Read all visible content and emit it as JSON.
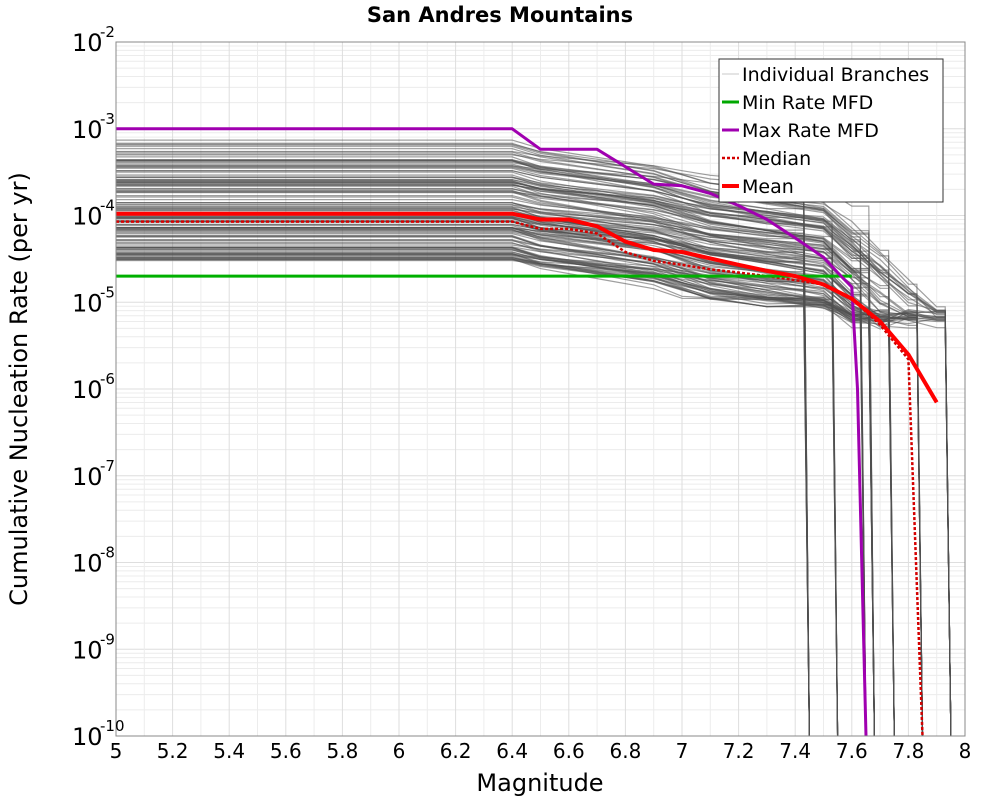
{
  "chart_data": {
    "type": "line",
    "title": "San Andres Mountains",
    "xlabel": "Magnitude",
    "ylabel": "Cumulative Nucleation Rate (per yr)",
    "xlim": [
      5,
      8
    ],
    "ylim": [
      1e-10,
      0.01
    ],
    "yscale": "log",
    "grid": true,
    "legend_position": "top-right",
    "x_ticks": [
      "5",
      "5.2",
      "5.4",
      "5.6",
      "5.8",
      "6",
      "6.2",
      "6.4",
      "6.6",
      "6.8",
      "7",
      "7.2",
      "7.4",
      "7.6",
      "7.8",
      "8"
    ],
    "y_ticks": [
      {
        "base": "10",
        "exp": "-10"
      },
      {
        "base": "10",
        "exp": "-9"
      },
      {
        "base": "10",
        "exp": "-8"
      },
      {
        "base": "10",
        "exp": "-7"
      },
      {
        "base": "10",
        "exp": "-6"
      },
      {
        "base": "10",
        "exp": "-5"
      },
      {
        "base": "10",
        "exp": "-4"
      },
      {
        "base": "10",
        "exp": "-3"
      },
      {
        "base": "10",
        "exp": "-2"
      }
    ],
    "legend": [
      {
        "label": "Individual Branches",
        "color": "#c8c8c8",
        "style": "solid"
      },
      {
        "label": "Min Rate MFD",
        "color": "#00a800",
        "style": "solid"
      },
      {
        "label": "Max Rate MFD",
        "color": "#a000b0",
        "style": "solid"
      },
      {
        "label": "Median",
        "color": "#d40000",
        "style": "dotted"
      },
      {
        "label": "Mean",
        "color": "#ff0000",
        "style": "solid"
      }
    ],
    "branches": {
      "color": "#505050",
      "rate_range_at_m5": [
        3e-05,
        0.00075
      ],
      "step_magnitudes": [
        6.4,
        6.5,
        6.7,
        6.9,
        7.0,
        7.1,
        7.3,
        7.5,
        7.6,
        7.7,
        7.8,
        7.9
      ],
      "max_magnitudes": [
        7.45,
        7.55,
        7.65,
        7.68,
        7.75,
        7.85,
        7.95
      ]
    },
    "series": [
      {
        "name": "Min Rate MFD",
        "color": "#00b000",
        "x": [
          5.0,
          6.4,
          6.5,
          7.0,
          7.5,
          7.6
        ],
        "y": [
          2e-05,
          2e-05,
          2e-05,
          2e-05,
          2e-05,
          2e-05
        ]
      },
      {
        "name": "Max Rate MFD",
        "color": "#a000b0",
        "x": [
          5.0,
          6.4,
          6.5,
          6.7,
          6.9,
          7.0,
          7.1,
          7.2,
          7.3,
          7.4,
          7.5,
          7.55,
          7.6,
          7.62,
          7.65
        ],
        "y": [
          0.001,
          0.001,
          0.00058,
          0.00058,
          0.00023,
          0.00022,
          0.00018,
          0.00013,
          9e-05,
          5.5e-05,
          3.3e-05,
          2.2e-05,
          1.5e-05,
          1e-06,
          1e-10
        ]
      },
      {
        "name": "Median",
        "color": "#d40000",
        "x": [
          5.0,
          6.4,
          6.5,
          6.6,
          6.7,
          6.8,
          6.9,
          7.0,
          7.1,
          7.2,
          7.3,
          7.4,
          7.5,
          7.6,
          7.7,
          7.8,
          7.85
        ],
        "y": [
          8.5e-05,
          8.5e-05,
          7e-05,
          7e-05,
          6.2e-05,
          3.8e-05,
          3e-05,
          2.7e-05,
          2.4e-05,
          2.2e-05,
          2e-05,
          1.8e-05,
          1.6e-05,
          1.1e-05,
          5.5e-06,
          2.2e-06,
          1e-10
        ]
      },
      {
        "name": "Mean",
        "color": "#ff0000",
        "x": [
          5.0,
          6.4,
          6.5,
          6.6,
          6.7,
          6.8,
          6.9,
          7.0,
          7.1,
          7.2,
          7.3,
          7.4,
          7.5,
          7.6,
          7.7,
          7.8,
          7.9
        ],
        "y": [
          0.000105,
          0.000105,
          9e-05,
          9e-05,
          7.5e-05,
          5e-05,
          4e-05,
          3.8e-05,
          3.2e-05,
          2.7e-05,
          2.3e-05,
          2e-05,
          1.6e-05,
          1.1e-05,
          6e-06,
          2.5e-06,
          7e-07
        ]
      }
    ]
  }
}
